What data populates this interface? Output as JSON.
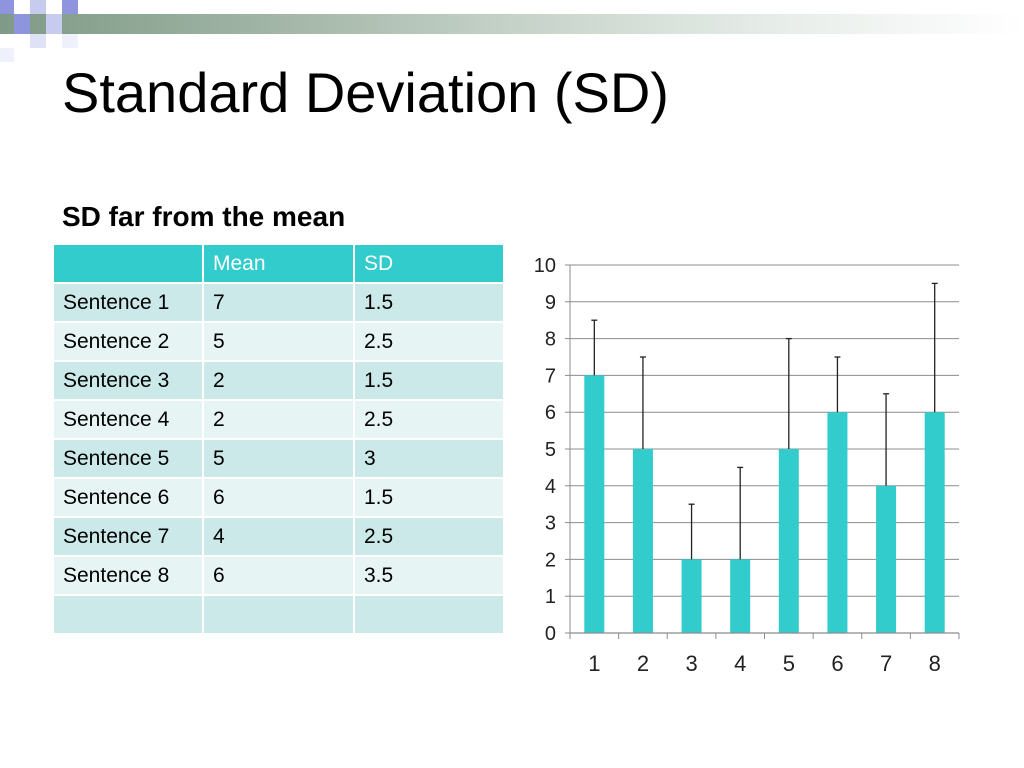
{
  "title": "Standard Deviation (SD)",
  "subtitle": "SD far from the mean",
  "table": {
    "headers": [
      "",
      "Mean",
      "SD"
    ],
    "rows": [
      [
        "Sentence 1",
        "7",
        "1.5"
      ],
      [
        "Sentence 2",
        "5",
        "2.5"
      ],
      [
        "Sentence 3",
        "2",
        "1.5"
      ],
      [
        "Sentence 4",
        "2",
        "2.5"
      ],
      [
        "Sentence 5",
        "5",
        "3"
      ],
      [
        "Sentence 6",
        "6",
        "1.5"
      ],
      [
        "Sentence 7",
        "4",
        "2.5"
      ],
      [
        "Sentence 8",
        "6",
        "3.5"
      ],
      [
        "",
        "",
        ""
      ]
    ]
  },
  "colors": {
    "accent": "#33cccc",
    "row_dark": "#cce9e9",
    "row_light": "#e7f4f4",
    "deco_blue": "#8e95de"
  },
  "chart_data": {
    "type": "bar",
    "categories": [
      "1",
      "2",
      "3",
      "4",
      "5",
      "6",
      "7",
      "8"
    ],
    "values": [
      7,
      5,
      2,
      2,
      5,
      6,
      4,
      6
    ],
    "error_bars": [
      1.5,
      2.5,
      1.5,
      2.5,
      3,
      1.5,
      2.5,
      3.5
    ],
    "ylim": [
      0,
      10
    ],
    "yticks": [
      0,
      1,
      2,
      3,
      4,
      5,
      6,
      7,
      8,
      9,
      10
    ],
    "grid": true,
    "bar_color": "#33cccc"
  }
}
